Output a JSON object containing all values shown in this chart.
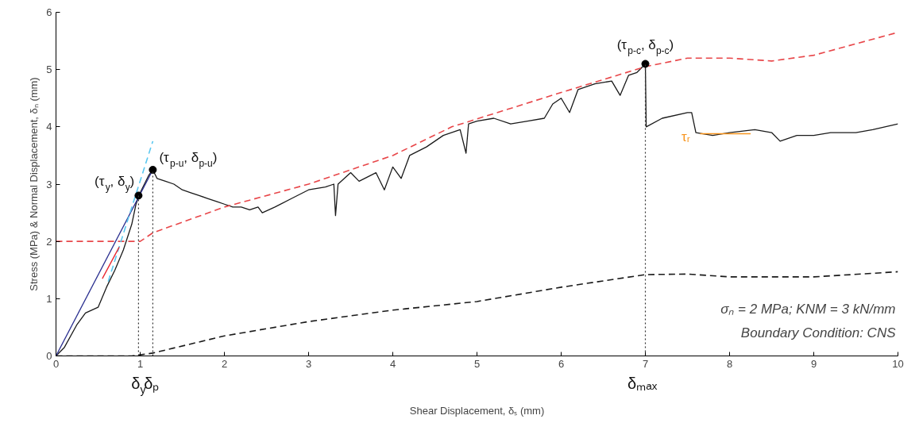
{
  "chart_data": {
    "type": "line",
    "xlabel": "Shear Displacement, δₛ (mm)",
    "ylabel": "Stress (MPa) & Normal Displacement, δₙ (mm)",
    "xlim": [
      0,
      10
    ],
    "ylim": [
      0,
      6
    ],
    "xticks": [
      0,
      1,
      2,
      3,
      4,
      5,
      6,
      7,
      8,
      9,
      10
    ],
    "yticks": [
      0,
      1,
      2,
      3,
      4,
      5,
      6
    ],
    "grid": false,
    "series": [
      {
        "color": "#1a1a1a",
        "line_style": "solid",
        "x": [
          0,
          0.1,
          0.25,
          0.35,
          0.5,
          0.6,
          0.7,
          0.8,
          0.9,
          0.95,
          1.0,
          1.1,
          1.15,
          1.2,
          1.3,
          1.4,
          1.5,
          1.6,
          1.7,
          1.8,
          1.9,
          2.0,
          2.1,
          2.2,
          2.3,
          2.4,
          2.45,
          2.6,
          2.8,
          3.0,
          3.2,
          3.3,
          3.32,
          3.35,
          3.5,
          3.6,
          3.8,
          3.9,
          4.0,
          4.1,
          4.2,
          4.4,
          4.6,
          4.8,
          4.87,
          4.9,
          5.0,
          5.2,
          5.4,
          5.6,
          5.8,
          5.9,
          6.0,
          6.1,
          6.2,
          6.4,
          6.6,
          6.7,
          6.8,
          6.9,
          7.0,
          7.01,
          7.2,
          7.5,
          7.55,
          7.6,
          7.8,
          8.0,
          8.3,
          8.5,
          8.6,
          8.8,
          9.0,
          9.2,
          9.5,
          9.7,
          10.0
        ],
        "values": [
          0,
          0.15,
          0.55,
          0.75,
          0.85,
          1.2,
          1.5,
          1.85,
          2.3,
          2.65,
          2.85,
          3.15,
          3.25,
          3.1,
          3.05,
          3.0,
          2.9,
          2.85,
          2.8,
          2.75,
          2.7,
          2.65,
          2.6,
          2.6,
          2.55,
          2.6,
          2.5,
          2.6,
          2.75,
          2.9,
          2.95,
          3.0,
          2.45,
          3.0,
          3.2,
          3.05,
          3.2,
          2.9,
          3.3,
          3.1,
          3.5,
          3.65,
          3.85,
          3.95,
          3.54,
          4.05,
          4.1,
          4.15,
          4.05,
          4.1,
          4.15,
          4.4,
          4.5,
          4.25,
          4.65,
          4.75,
          4.8,
          4.55,
          4.9,
          4.95,
          5.1,
          4.0,
          4.15,
          4.25,
          4.25,
          3.9,
          3.85,
          3.9,
          3.95,
          3.9,
          3.75,
          3.85,
          3.85,
          3.9,
          3.9,
          3.95,
          4.05
        ]
      },
      {
        "color": "#e8474a",
        "line_style": "dashed",
        "x": [
          0,
          1.0,
          1.15,
          2,
          3,
          4,
          4.7,
          6,
          7,
          7.5,
          8,
          8.5,
          9,
          10
        ],
        "values": [
          2.0,
          2.0,
          2.15,
          2.6,
          3.0,
          3.5,
          4.0,
          4.6,
          5.05,
          5.2,
          5.2,
          5.15,
          5.25,
          5.65
        ]
      },
      {
        "color": "#1a1a1a",
        "line_style": "dashed",
        "x": [
          0,
          0.9,
          1.15,
          2,
          3,
          4,
          5,
          6,
          7,
          7.5,
          8,
          9,
          10
        ],
        "values": [
          0,
          0,
          0.05,
          0.35,
          0.6,
          0.8,
          0.95,
          1.2,
          1.42,
          1.43,
          1.38,
          1.38,
          1.47
        ]
      },
      {
        "color": "#2a2f8f",
        "line_style": "solid",
        "x": [
          0,
          1.15
        ],
        "values": [
          0,
          3.25
        ]
      },
      {
        "color": "#5bc8f0",
        "line_style": "dashed",
        "x": [
          0.62,
          1.15
        ],
        "values": [
          1.3,
          3.75
        ]
      },
      {
        "color": "#e8202a",
        "line_style": "solid",
        "x": [
          0.55,
          0.75
        ],
        "values": [
          1.35,
          1.9
        ]
      },
      {
        "color": "#f7941d",
        "line_style": "solid",
        "x": [
          7.65,
          8.25
        ],
        "values": [
          3.88,
          3.88
        ]
      },
      {
        "type": "scatter",
        "color": "#000000",
        "marker": "circle",
        "x": [
          0.98,
          1.15,
          7.0
        ],
        "values": [
          2.8,
          3.25,
          5.1
        ]
      }
    ],
    "ref_lines": [
      {
        "axis": "x",
        "value": 0.98,
        "label": "δ$_{y}$",
        "line_style": "dotted",
        "color": "#333333"
      },
      {
        "axis": "x",
        "value": 1.15,
        "label": "δₚ",
        "line_style": "dotted",
        "color": "#333333"
      },
      {
        "axis": "x",
        "value": 7.0,
        "label": "δₘₐₓ",
        "line_style": "dotted",
        "color": "#333333"
      }
    ],
    "annotations": [
      {
        "text": "(τ$_{y}$, δ$_{y}$)",
        "x": 0.98,
        "y": 2.8
      },
      {
        "text": "(τ$_{p-u}$, δ$_{p-u}$)",
        "x": 1.15,
        "y": 3.25
      },
      {
        "text": "(τ$_{p-c}$, δ$_{p-c}$)",
        "x": 7.0,
        "y": 5.1
      },
      {
        "text": "τᵣ",
        "x": 7.65,
        "y": 3.88
      },
      "σₙ = 2 MPa; KNM = 3 kN/mm",
      "Boundary Condition: CNS"
    ]
  }
}
